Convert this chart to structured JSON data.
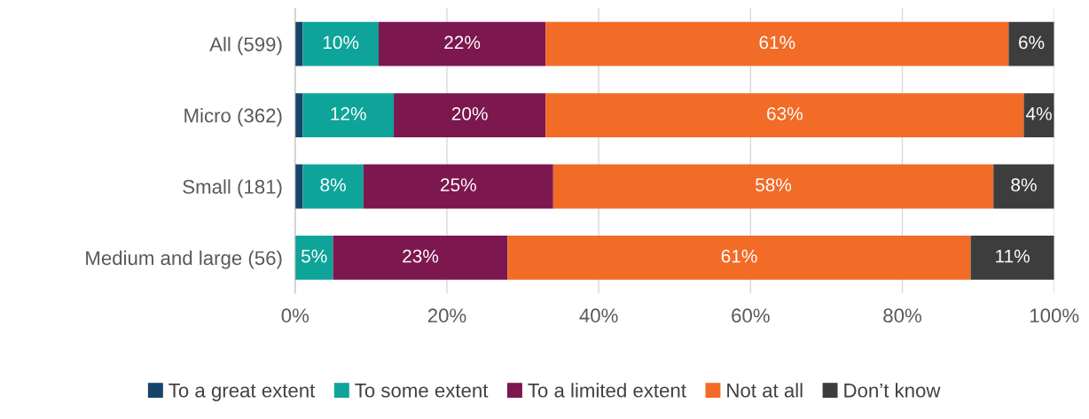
{
  "chart_data": {
    "type": "bar",
    "orientation": "horizontal",
    "stacked": true,
    "categories": [
      "All (599)",
      "Micro (362)",
      "Small (181)",
      "Medium and large (56)"
    ],
    "series": [
      {
        "name": "To a great extent",
        "color": "#17446b",
        "values": [
          1,
          1,
          1,
          0
        ],
        "value_labels": [
          null,
          null,
          null,
          null
        ]
      },
      {
        "name": "To some extent",
        "color": "#0ea49a",
        "values": [
          10,
          12,
          8,
          5
        ],
        "value_labels": [
          "10%",
          "12%",
          "8%",
          "5%"
        ]
      },
      {
        "name": "To a limited extent",
        "color": "#7c174f",
        "values": [
          22,
          20,
          25,
          23
        ],
        "value_labels": [
          "22%",
          "20%",
          "25%",
          "23%"
        ]
      },
      {
        "name": "Not at all",
        "color": "#f26b27",
        "values": [
          61,
          63,
          58,
          61
        ],
        "value_labels": [
          "61%",
          "63%",
          "58%",
          "61%"
        ]
      },
      {
        "name": "Don’t know",
        "color": "#3d3d3d",
        "values": [
          6,
          4,
          8,
          11
        ],
        "value_labels": [
          "6%",
          "4%",
          "8%",
          "11%"
        ]
      }
    ],
    "xlim": [
      0,
      100
    ],
    "xticks": [
      {
        "value": 0,
        "label": "0%"
      },
      {
        "value": 20,
        "label": "20%"
      },
      {
        "value": 40,
        "label": "40%"
      },
      {
        "value": 60,
        "label": "60%"
      },
      {
        "value": 80,
        "label": "80%"
      },
      {
        "value": 100,
        "label": "100%"
      }
    ],
    "grid": "x",
    "legend": "bottom"
  }
}
